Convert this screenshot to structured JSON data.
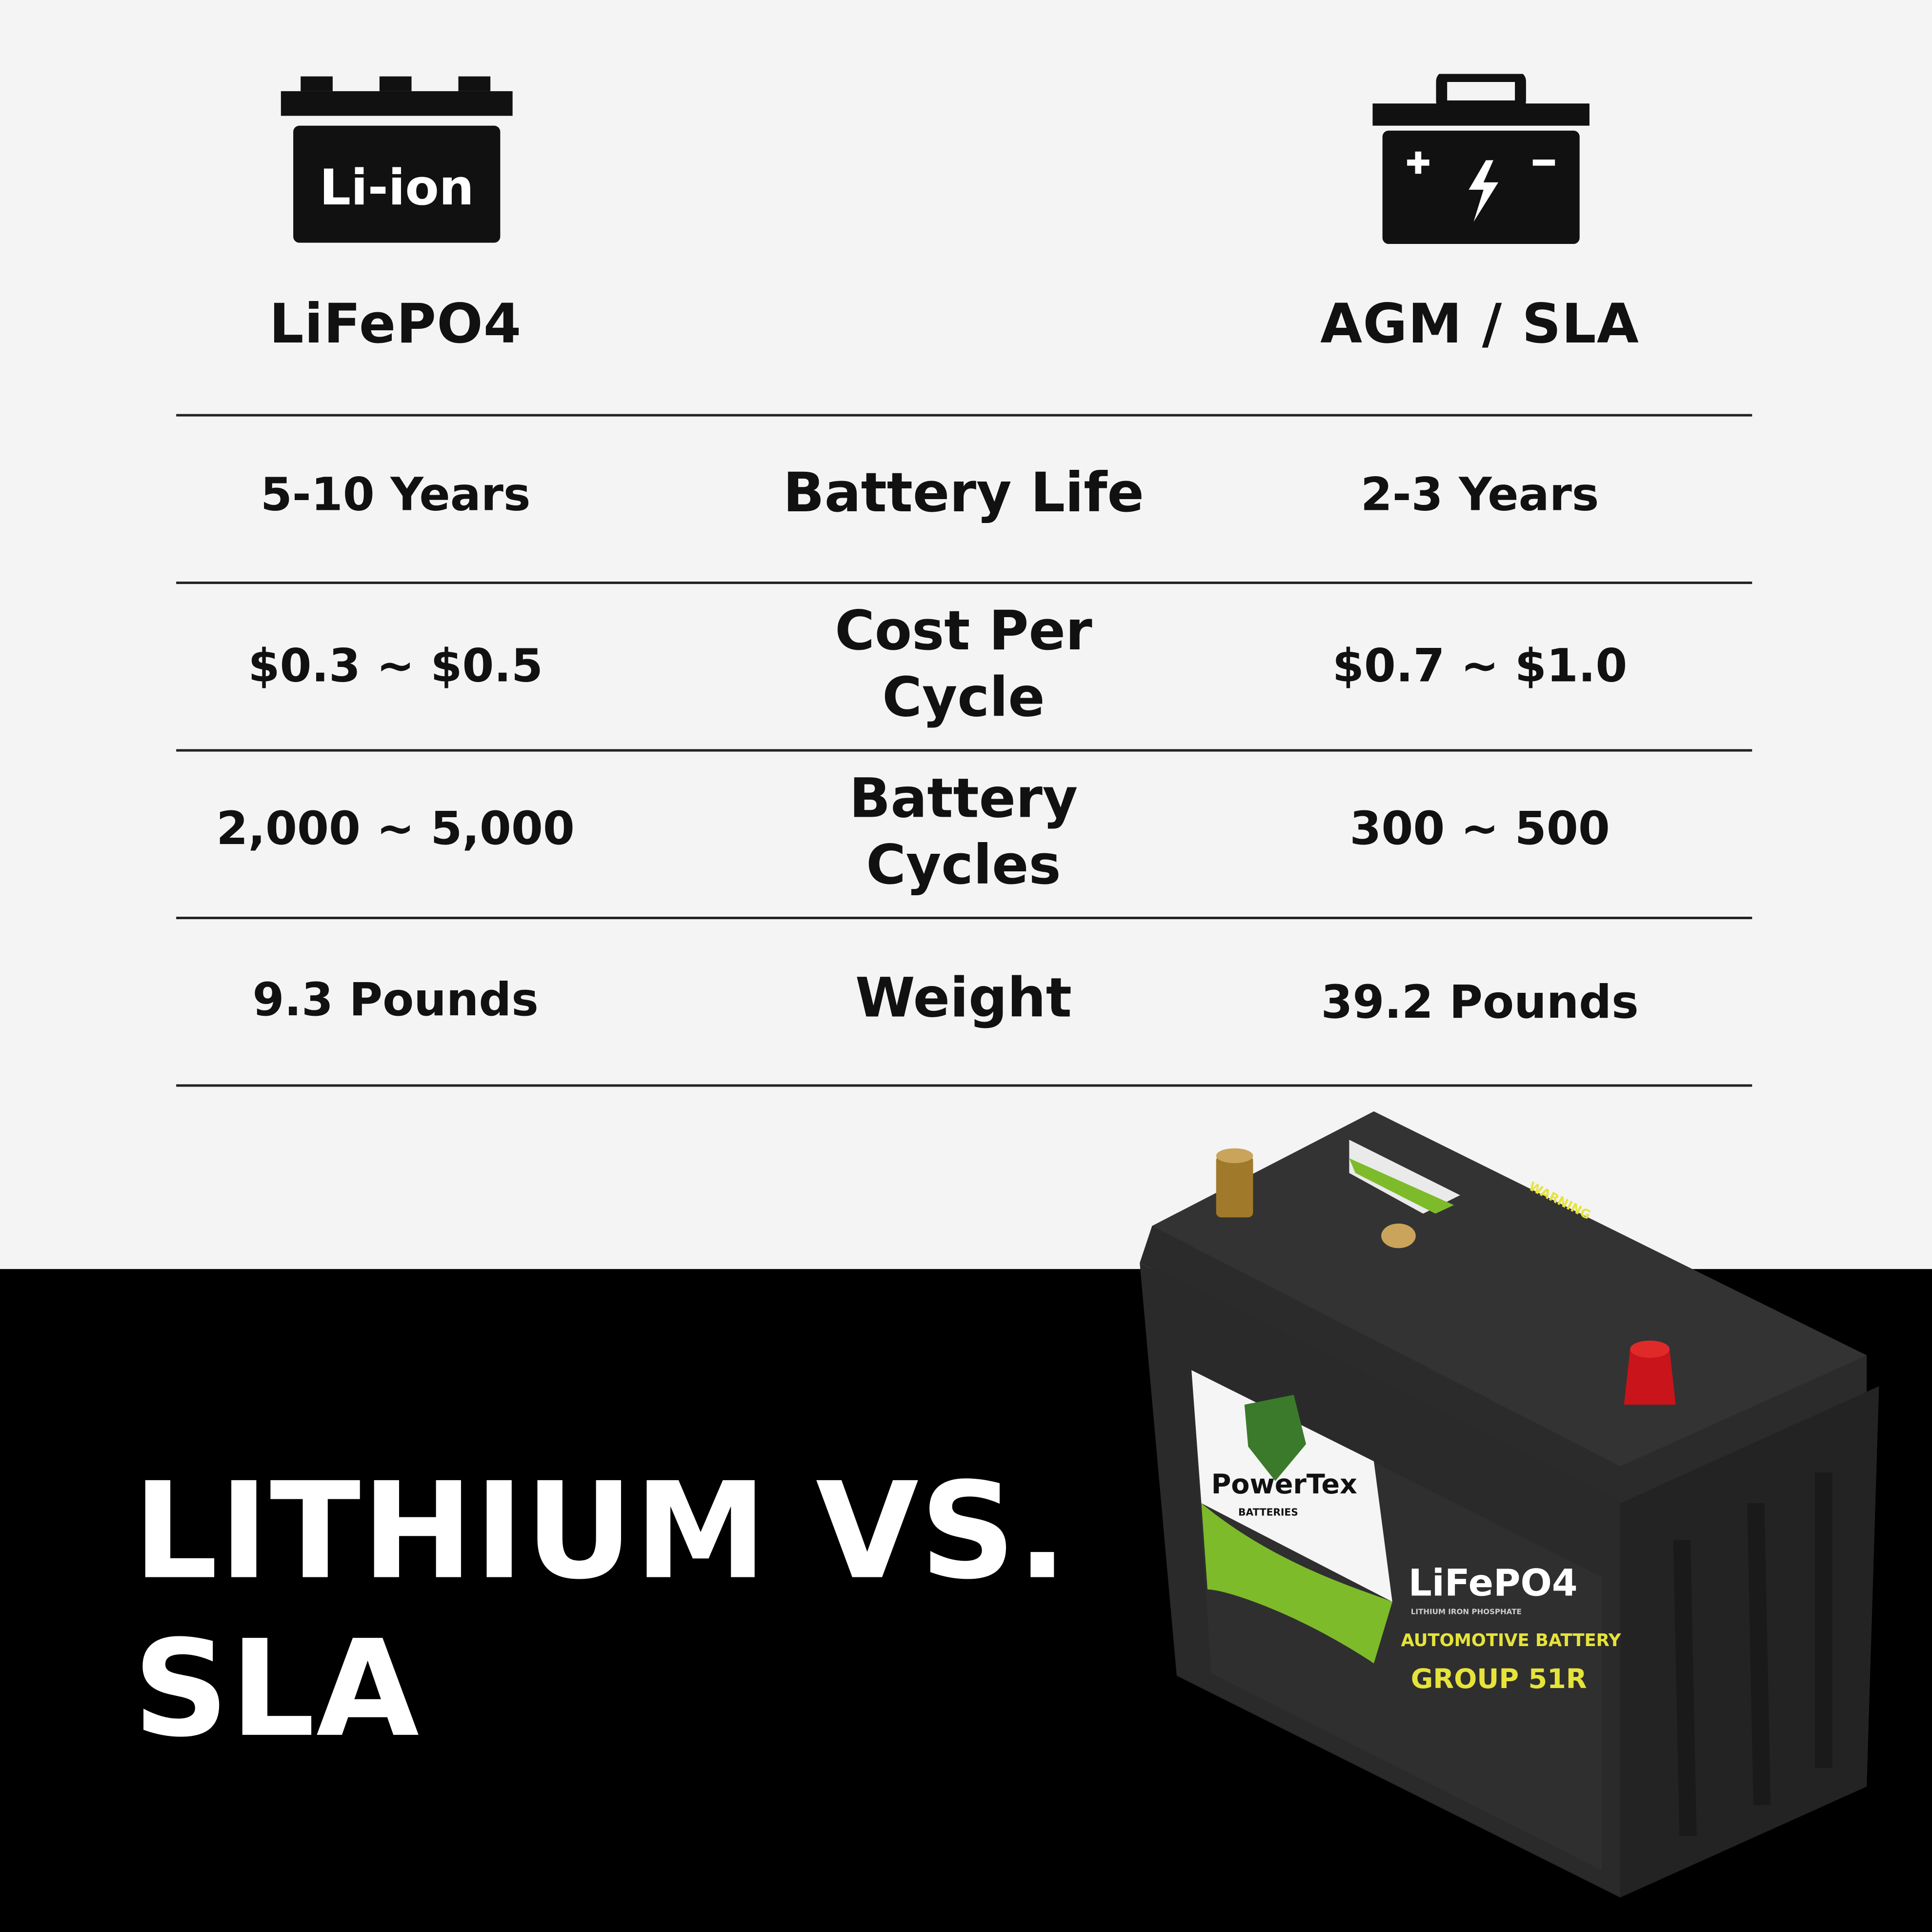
{
  "columns": {
    "left": {
      "icon": "li-ion-battery-icon",
      "icon_label": "Li-ion",
      "title": "LiFePO4"
    },
    "right": {
      "icon": "lead-acid-battery-icon",
      "title": "AGM / SLA"
    }
  },
  "rows": [
    {
      "metric": "Battery Life",
      "lifepo4": "5-10 Years",
      "sla": "2-3 Years"
    },
    {
      "metric": "Cost Per Cycle",
      "lifepo4": "$0.3 ~ $0.5",
      "sla": "$0.7 ~ $1.0"
    },
    {
      "metric": "Battery Cycles",
      "lifepo4": "2,000 ~ 5,000",
      "sla": "300 ~ 500"
    },
    {
      "metric": "Weight",
      "lifepo4": "9.3 Pounds",
      "sla": "39.2 Pounds"
    }
  ],
  "headline": {
    "line1": "LITHIUM VS.",
    "line2": "SLA"
  },
  "product": {
    "brand": "PowerTex",
    "brand_sub": "BATTERIES",
    "chemistry": "LiFePO4",
    "chemistry_sub": "LITHIUM IRON PHOSPHATE",
    "type": "AUTOMOTIVE BATTERY",
    "group": "GROUP 51R",
    "warning": "WARNING"
  },
  "colors": {
    "background_top": "#f3f4f3",
    "background_bottom": "#000000",
    "text": "#111111",
    "label_yellow": "#e6e33a",
    "brand_green": "#7dbb2a",
    "terminal_red": "#c8141a"
  }
}
